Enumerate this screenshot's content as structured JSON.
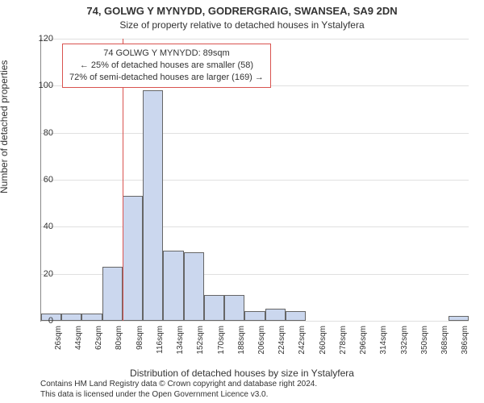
{
  "chart": {
    "type": "histogram",
    "title_line1": "74, GOLWG Y MYNYDD, GODRERGRAIG, SWANSEA, SA9 2DN",
    "title_line2": "Size of property relative to detached houses in Ystalyfera",
    "ylabel": "Number of detached properties",
    "xlabel": "Distribution of detached houses by size in Ystalyfera",
    "ylim": [
      0,
      120
    ],
    "ytick_step": 20,
    "yticks": [
      0,
      20,
      40,
      60,
      80,
      100,
      120
    ],
    "xticks": [
      "26sqm",
      "44sqm",
      "62sqm",
      "80sqm",
      "98sqm",
      "116sqm",
      "134sqm",
      "152sqm",
      "170sqm",
      "188sqm",
      "206sqm",
      "224sqm",
      "242sqm",
      "260sqm",
      "278sqm",
      "296sqm",
      "314sqm",
      "332sqm",
      "350sqm",
      "368sqm",
      "386sqm"
    ],
    "bar_values": [
      3,
      3,
      3,
      23,
      53,
      98,
      30,
      29,
      11,
      11,
      4,
      5,
      4,
      0,
      0,
      0,
      0,
      0,
      0,
      0,
      2
    ],
    "bar_color": "#cbd7ee",
    "bar_border": "#666666",
    "grid_color": "#e0e0e0",
    "axis_color": "#888888",
    "background_color": "#ffffff",
    "bar_width_ratio": 1.0,
    "marker_value_sqm": 89,
    "marker_color": "#d9534f",
    "annotation": {
      "line1": "74 GOLWG Y MYNYDD: 89sqm",
      "line2": "← 25% of detached houses are smaller (58)",
      "line3": "72% of semi-detached houses are larger (169) →",
      "border_color": "#d9534f",
      "fontsize": 11
    },
    "title_fontsize": 13,
    "label_fontsize": 12,
    "tick_fontsize": 11
  },
  "footer": {
    "line1": "Contains HM Land Registry data © Crown copyright and database right 2024.",
    "line2": "This data is licensed under the Open Government Licence v3.0."
  }
}
